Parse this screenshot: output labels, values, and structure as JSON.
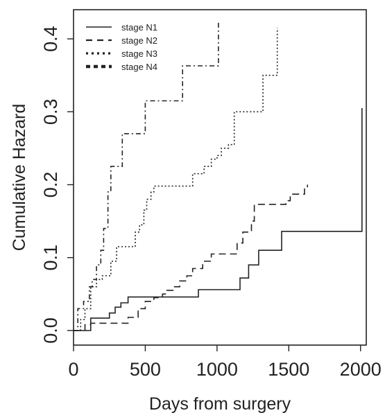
{
  "chart_data": {
    "type": "line",
    "title": "",
    "xlabel": "Days from surgery",
    "ylabel": "Cumulative Hazard",
    "xlim": [
      0,
      2040
    ],
    "ylim": [
      -0.02,
      0.44
    ],
    "xticks": [
      0,
      500,
      1000,
      1500,
      2000
    ],
    "yticks": [
      0.0,
      0.1,
      0.2,
      0.3,
      0.4
    ],
    "xtick_labels": [
      "0",
      "500",
      "1000",
      "1500",
      "2000"
    ],
    "ytick_labels": [
      "0.0",
      "0.1",
      "0.2",
      "0.3",
      "0.4"
    ],
    "grid": false,
    "legend_position": "top-left",
    "step_plot": true,
    "series": [
      {
        "name": "stage N1",
        "line_style": "solid",
        "x": [
          0,
          100,
          120,
          220,
          250,
          290,
          330,
          380,
          600,
          870,
          1160,
          1220,
          1290,
          1310,
          1450,
          2010,
          2010
        ],
        "y": [
          0.0,
          0.0,
          0.017,
          0.017,
          0.024,
          0.032,
          0.038,
          0.046,
          0.046,
          0.056,
          0.072,
          0.09,
          0.11,
          0.11,
          0.136,
          0.136,
          0.305
        ]
      },
      {
        "name": "stage N2",
        "line_style": "dashed",
        "x": [
          0,
          30,
          80,
          120,
          330,
          380,
          450,
          500,
          560,
          620,
          650,
          700,
          740,
          790,
          830,
          900,
          960,
          1100,
          1140,
          1180,
          1240,
          1260,
          1470,
          1480,
          1510,
          1610,
          1630
        ],
        "y": [
          0.0,
          0.0,
          0.008,
          0.01,
          0.01,
          0.018,
          0.03,
          0.04,
          0.045,
          0.05,
          0.055,
          0.06,
          0.068,
          0.075,
          0.085,
          0.095,
          0.105,
          0.105,
          0.12,
          0.135,
          0.15,
          0.173,
          0.173,
          0.178,
          0.187,
          0.195,
          0.2
        ]
      },
      {
        "name": "stage N3",
        "line_style": "dotted",
        "x": [
          0,
          50,
          80,
          120,
          160,
          200,
          260,
          300,
          410,
          430,
          460,
          490,
          510,
          540,
          560,
          800,
          830,
          910,
          960,
          1000,
          1030,
          1080,
          1120,
          1300,
          1320,
          1420,
          1420
        ],
        "y": [
          0.0,
          0.015,
          0.03,
          0.06,
          0.07,
          0.075,
          0.095,
          0.115,
          0.115,
          0.135,
          0.145,
          0.165,
          0.18,
          0.19,
          0.198,
          0.198,
          0.215,
          0.225,
          0.235,
          0.24,
          0.25,
          0.255,
          0.3,
          0.3,
          0.35,
          0.35,
          0.415
        ]
      },
      {
        "name": "stage N4",
        "line_style": "dash-dot",
        "x": [
          0,
          30,
          70,
          110,
          130,
          160,
          190,
          210,
          240,
          260,
          310,
          340,
          380,
          470,
          500,
          730,
          760,
          1010,
          1010
        ],
        "y": [
          0.0,
          0.03,
          0.04,
          0.06,
          0.07,
          0.09,
          0.11,
          0.14,
          0.19,
          0.225,
          0.225,
          0.27,
          0.27,
          0.27,
          0.315,
          0.315,
          0.363,
          0.363,
          0.423
        ]
      }
    ]
  }
}
